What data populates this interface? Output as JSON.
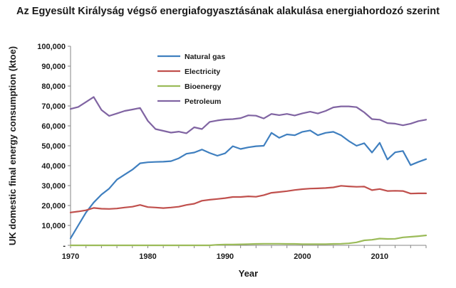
{
  "chart_data": {
    "type": "line",
    "title": "Az Egyesült Királyság végső energiafogyasztásának alakulása energiahordozó szerint",
    "xlabel": "Year",
    "ylabel": "UK domestic final energy consumption (ktoe)",
    "xlim": [
      1970,
      2016
    ],
    "ylim": [
      0,
      100000
    ],
    "x_ticks": [
      "1970",
      "1980",
      "1990",
      "2000",
      "2010"
    ],
    "y_ticks": [
      "-",
      "10,000",
      "20,000",
      "30,000",
      "40,000",
      "50,000",
      "60,000",
      "70,000",
      "80,000",
      "90,000",
      "100,000"
    ],
    "x": [
      1970,
      1971,
      1972,
      1973,
      1974,
      1975,
      1976,
      1977,
      1978,
      1979,
      1980,
      1981,
      1982,
      1983,
      1984,
      1985,
      1986,
      1987,
      1988,
      1989,
      1990,
      1991,
      1992,
      1993,
      1994,
      1995,
      1996,
      1997,
      1998,
      1999,
      2000,
      2001,
      2002,
      2003,
      2004,
      2005,
      2006,
      2007,
      2008,
      2009,
      2010,
      2011,
      2012,
      2013,
      2014,
      2015,
      2016
    ],
    "series": [
      {
        "name": "Natural gas",
        "color": "#3f7fbf",
        "values": [
          3500,
          10000,
          16500,
          21500,
          25500,
          28500,
          33000,
          35500,
          38000,
          41200,
          41700,
          41900,
          42000,
          42300,
          43700,
          46000,
          46600,
          48100,
          46400,
          45000,
          46200,
          49800,
          48400,
          49200,
          49800,
          50000,
          56500,
          54000,
          55700,
          55300,
          57000,
          57700,
          55300,
          56500,
          57000,
          55300,
          52400,
          50000,
          51300,
          46600,
          51500,
          43100,
          46700,
          47400,
          40300,
          41900,
          43300
        ]
      },
      {
        "name": "Electricity",
        "color": "#c0504d",
        "values": [
          16500,
          17000,
          17600,
          18800,
          18400,
          18300,
          18500,
          19000,
          19400,
          20300,
          19200,
          19000,
          18700,
          19000,
          19400,
          20300,
          20900,
          22400,
          22900,
          23300,
          23700,
          24300,
          24300,
          24600,
          24400,
          25200,
          26400,
          26800,
          27200,
          27800,
          28200,
          28500,
          28600,
          28800,
          29100,
          29900,
          29600,
          29400,
          29500,
          27700,
          28300,
          27300,
          27400,
          27300,
          26000,
          26100,
          26100
        ]
      },
      {
        "name": "Bioenergy",
        "color": "#9bbb59",
        "values": [
          0,
          0,
          0,
          0,
          0,
          0,
          0,
          0,
          0,
          0,
          0,
          0,
          0,
          0,
          0,
          0,
          0,
          0,
          0,
          300,
          400,
          400,
          500,
          600,
          700,
          800,
          800,
          800,
          700,
          700,
          600,
          600,
          600,
          600,
          700,
          800,
          1000,
          1500,
          2500,
          2800,
          3400,
          3200,
          3300,
          4000,
          4300,
          4600,
          5000
        ]
      },
      {
        "name": "Petroleum",
        "color": "#8064a2",
        "values": [
          68500,
          69500,
          72000,
          74500,
          68000,
          65000,
          66200,
          67500,
          68200,
          69000,
          62500,
          58400,
          57500,
          56600,
          57100,
          56300,
          59300,
          58400,
          62000,
          62700,
          63200,
          63400,
          63900,
          65300,
          65100,
          63700,
          66000,
          65400,
          66000,
          65200,
          66300,
          67100,
          66200,
          67500,
          69300,
          69800,
          69800,
          69400,
          66800,
          63400,
          63100,
          61400,
          61100,
          60300,
          61100,
          62400,
          63100
        ]
      }
    ],
    "legend_position": "top-left inside",
    "grid": false
  }
}
